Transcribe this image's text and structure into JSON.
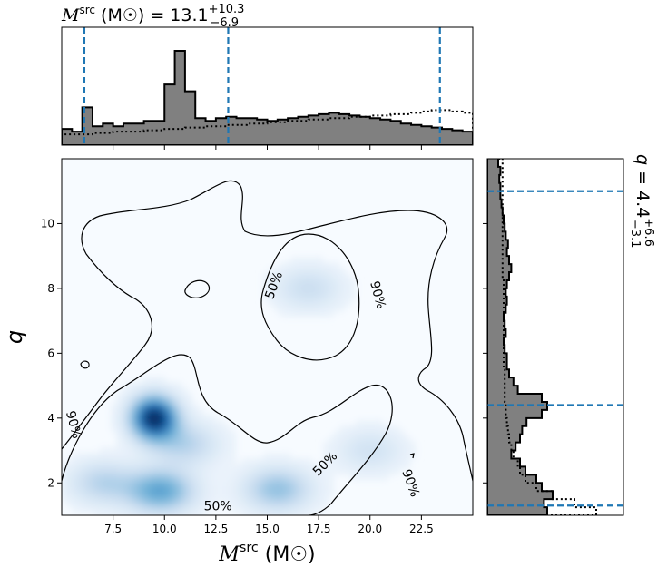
{
  "chart_data": [
    {
      "type": "heatmap",
      "xlabel": "M^src (M☉)",
      "ylabel": "q",
      "xlim": [
        5,
        25
      ],
      "ylim": [
        1,
        12
      ],
      "xticks": [
        7.5,
        10.0,
        12.5,
        15.0,
        17.5,
        20.0,
        22.5
      ],
      "xtick_labels": [
        "7.5",
        "10.0",
        "12.5",
        "15.0",
        "17.5",
        "20.0",
        "22.5"
      ],
      "yticks": [
        2,
        4,
        6,
        8,
        10
      ],
      "ytick_labels": [
        "2",
        "4",
        "6",
        "8",
        "10"
      ],
      "colormap": "Blues",
      "density_peaks": [
        {
          "x": 9.5,
          "y": 4.0,
          "weight": 1.0
        },
        {
          "x": 9.8,
          "y": 1.75,
          "weight": 0.5
        },
        {
          "x": 15.5,
          "y": 1.8,
          "weight": 0.35
        },
        {
          "x": 11.0,
          "y": 3.2,
          "weight": 0.25
        },
        {
          "x": 17.0,
          "y": 8.0,
          "weight": 0.18
        },
        {
          "x": 20.0,
          "y": 3.0,
          "weight": 0.15
        },
        {
          "x": 7.0,
          "y": 2.0,
          "weight": 0.25
        }
      ],
      "contour_labels": [
        {
          "text": "50%",
          "x": 12.6,
          "y": 1.3
        },
        {
          "text": "50%",
          "x": 15.3,
          "y": 8.1
        },
        {
          "text": "50%",
          "x": 17.8,
          "y": 2.6
        },
        {
          "text": "90%",
          "x": 5.6,
          "y": 3.8
        },
        {
          "text": "90%",
          "x": 20.4,
          "y": 7.8
        },
        {
          "text": "90%",
          "x": 22.0,
          "y": 2.0
        }
      ]
    },
    {
      "type": "bar",
      "panel": "top-histogram",
      "title_base": "M^src (M☉) = 13.1",
      "title_sup": "+10.3",
      "title_sub": "−6.9",
      "xlim": [
        5,
        25
      ],
      "bin_start": 5.0,
      "bin_width": 0.5,
      "series": [
        {
          "name": "posterior",
          "style": "filled",
          "values": [
            0.12,
            0.1,
            0.28,
            0.14,
            0.16,
            0.14,
            0.16,
            0.16,
            0.18,
            0.18,
            0.45,
            0.7,
            0.4,
            0.2,
            0.18,
            0.2,
            0.21,
            0.2,
            0.2,
            0.19,
            0.18,
            0.19,
            0.2,
            0.21,
            0.22,
            0.23,
            0.24,
            0.23,
            0.22,
            0.21,
            0.2,
            0.19,
            0.18,
            0.16,
            0.15,
            0.14,
            0.13,
            0.12,
            0.11,
            0.1
          ]
        },
        {
          "name": "prior",
          "style": "dotted",
          "values": [
            0.08,
            0.08,
            0.08,
            0.09,
            0.09,
            0.1,
            0.1,
            0.1,
            0.11,
            0.11,
            0.12,
            0.12,
            0.13,
            0.13,
            0.14,
            0.14,
            0.15,
            0.15,
            0.16,
            0.16,
            0.17,
            0.17,
            0.18,
            0.18,
            0.19,
            0.19,
            0.2,
            0.2,
            0.21,
            0.21,
            0.22,
            0.22,
            0.23,
            0.23,
            0.24,
            0.25,
            0.26,
            0.26,
            0.25,
            0.24
          ]
        }
      ],
      "vlines": [
        6.1,
        13.1,
        23.4
      ]
    },
    {
      "type": "bar",
      "panel": "right-histogram",
      "orientation": "horizontal",
      "title_base": "q = 4.4",
      "title_sup": "+6.6",
      "title_sub": "−3.1",
      "ylim": [
        1,
        12
      ],
      "bin_start": 1.0,
      "bin_width": 0.25,
      "series": [
        {
          "name": "posterior",
          "style": "filled",
          "values": [
            0.55,
            0.52,
            0.6,
            0.5,
            0.45,
            0.35,
            0.3,
            0.22,
            0.26,
            0.3,
            0.32,
            0.36,
            0.5,
            0.55,
            0.5,
            0.28,
            0.24,
            0.2,
            0.18,
            0.18,
            0.16,
            0.15,
            0.17,
            0.16,
            0.15,
            0.17,
            0.18,
            0.17,
            0.18,
            0.2,
            0.22,
            0.2,
            0.18,
            0.19,
            0.17,
            0.16,
            0.15,
            0.14,
            0.13,
            0.12,
            0.12,
            0.11,
            0.12,
            0.1,
            0.11
          ]
        },
        {
          "name": "prior",
          "style": "dotted",
          "values": [
            1.0,
            0.8,
            0.6,
            0.45,
            0.35,
            0.3,
            0.28,
            0.24,
            0.22,
            0.2,
            0.19,
            0.18,
            0.17,
            0.17,
            0.16,
            0.16,
            0.16,
            0.16,
            0.15,
            0.15,
            0.15,
            0.15,
            0.15,
            0.15,
            0.15,
            0.15,
            0.15,
            0.15,
            0.15,
            0.14,
            0.14,
            0.14,
            0.14,
            0.14,
            0.14,
            0.14,
            0.14,
            0.14,
            0.14,
            0.14,
            0.14,
            0.14,
            0.14,
            0.14,
            0.14
          ]
        }
      ],
      "hlines": [
        1.3,
        4.4,
        11.0
      ]
    }
  ]
}
